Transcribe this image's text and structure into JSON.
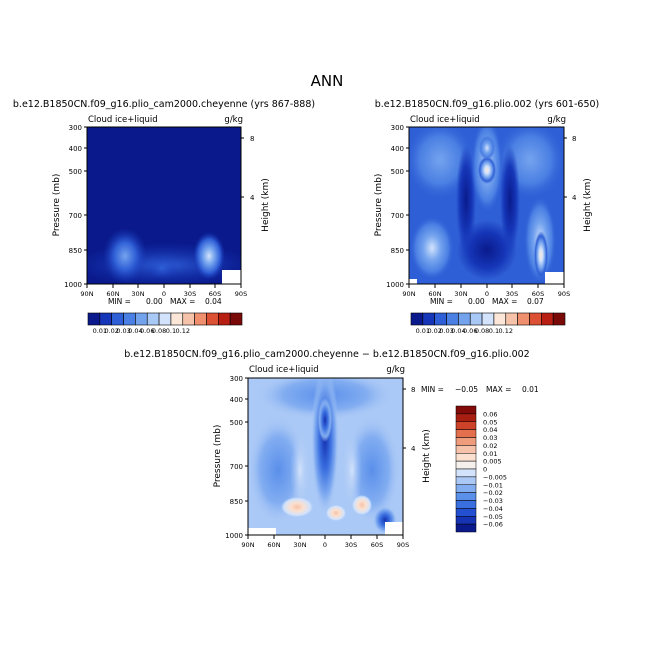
{
  "page_title": "ANN",
  "colors": {
    "upper_scale": [
      "#0a1a8c",
      "#1536b8",
      "#2f5fd6",
      "#4a7fe3",
      "#74a3ee",
      "#a8c8f6",
      "#d2e3fb",
      "#fbe6d8",
      "#f6c3aa",
      "#ef8f6e",
      "#dc5034",
      "#b81f12",
      "#7a0a08"
    ],
    "diff_scale": [
      "#0a1a8c",
      "#1533b2",
      "#2350d0",
      "#3a6fe0",
      "#5a8fea",
      "#82adf1",
      "#abc9f6",
      "#d3e3fb",
      "#f5f0ec",
      "#fbe0cf",
      "#f6c3aa",
      "#ef9c7d",
      "#e36f4f",
      "#cd4329",
      "#a81f12",
      "#820a08"
    ]
  },
  "chart_data": [
    {
      "type": "heatmap",
      "title": "b.e12.B1850CN.f09_g16.plio_cam2000.cheyenne (yrs 867-888)",
      "variable": "Cloud ice+liquid",
      "units": "g/kg",
      "ylabel": "Pressure (mb)",
      "ylabel_right": "Height (km)",
      "x_ticks": [
        "90N",
        "60N",
        "30N",
        "0",
        "30S",
        "60S",
        "90S"
      ],
      "y_ticks": [
        "300",
        "400",
        "500",
        "700",
        "850",
        "1000"
      ],
      "y_right_ticks": [
        "8",
        "4"
      ],
      "stats": {
        "min_label": "MIN =",
        "min": "0.00",
        "max_label": "MAX =",
        "max": "0.04"
      },
      "colorbar_labels": [
        "0.01",
        "0.02",
        "0.03",
        "0.04",
        "0.06",
        "0.08",
        "0.1",
        "0.12"
      ],
      "features": [
        {
          "lat": -47,
          "p": 860,
          "value": 0.04
        },
        {
          "lat": 52,
          "p": 860,
          "value": 0.03
        },
        {
          "lat": 5,
          "p": 870,
          "value": 0.015
        },
        {
          "lat": -20,
          "p": 880,
          "value": 0.015
        }
      ]
    },
    {
      "type": "heatmap",
      "title": "b.e12.B1850CN.f09_g16.plio.002 (yrs 601-650)",
      "variable": "Cloud ice+liquid",
      "units": "g/kg",
      "ylabel": "Pressure (mb)",
      "ylabel_right": "Height (km)",
      "x_ticks": [
        "90N",
        "60N",
        "30N",
        "0",
        "30S",
        "60S",
        "90S"
      ],
      "y_ticks": [
        "300",
        "400",
        "500",
        "700",
        "850",
        "1000"
      ],
      "y_right_ticks": [
        "8",
        "4"
      ],
      "stats": {
        "min_label": "MIN =",
        "min": "0.00",
        "max_label": "MAX =",
        "max": "0.07"
      },
      "colorbar_labels": [
        "0.01",
        "0.02",
        "0.03",
        "0.04",
        "0.06",
        "0.08",
        "0.1",
        "0.12"
      ],
      "features": [
        {
          "lat": -47,
          "p": 880,
          "value": 0.07
        },
        {
          "lat": 3,
          "p": 480,
          "value": 0.06
        },
        {
          "lat": 55,
          "p": 830,
          "value": 0.04
        },
        {
          "lat": -20,
          "p": 400,
          "value": 0.03
        },
        {
          "lat": 35,
          "p": 420,
          "value": 0.03
        }
      ]
    },
    {
      "type": "heatmap",
      "title": "b.e12.B1850CN.f09_g16.plio_cam2000.cheyenne − b.e12.B1850CN.f09_g16.plio.002",
      "variable": "Cloud ice+liquid",
      "units": "g/kg",
      "ylabel": "Pressure (mb)",
      "ylabel_right": "Height (km)",
      "x_ticks": [
        "90N",
        "60N",
        "30N",
        "0",
        "30S",
        "60S",
        "90S"
      ],
      "y_ticks": [
        "300",
        "400",
        "500",
        "700",
        "850",
        "1000"
      ],
      "y_right_ticks": [
        "8",
        "4"
      ],
      "stats": {
        "min_label": "MIN =",
        "min": "−0.05",
        "max_label": "MAX =",
        "max": "0.01"
      },
      "colorbar_labels": [
        "0.06",
        "0.05",
        "0.04",
        "0.03",
        "0.02",
        "0.01",
        "0.005",
        "0",
        "−0.005",
        "−0.01",
        "−0.02",
        "−0.03",
        "−0.04",
        "−0.05",
        "−0.06"
      ],
      "features": [
        {
          "lat": 3,
          "p": 480,
          "value": -0.05
        },
        {
          "lat": -40,
          "p": 880,
          "value": -0.04
        },
        {
          "lat": 32,
          "p": 840,
          "value": 0.005
        },
        {
          "lat": -45,
          "p": 840,
          "value": 0.005
        }
      ]
    }
  ]
}
